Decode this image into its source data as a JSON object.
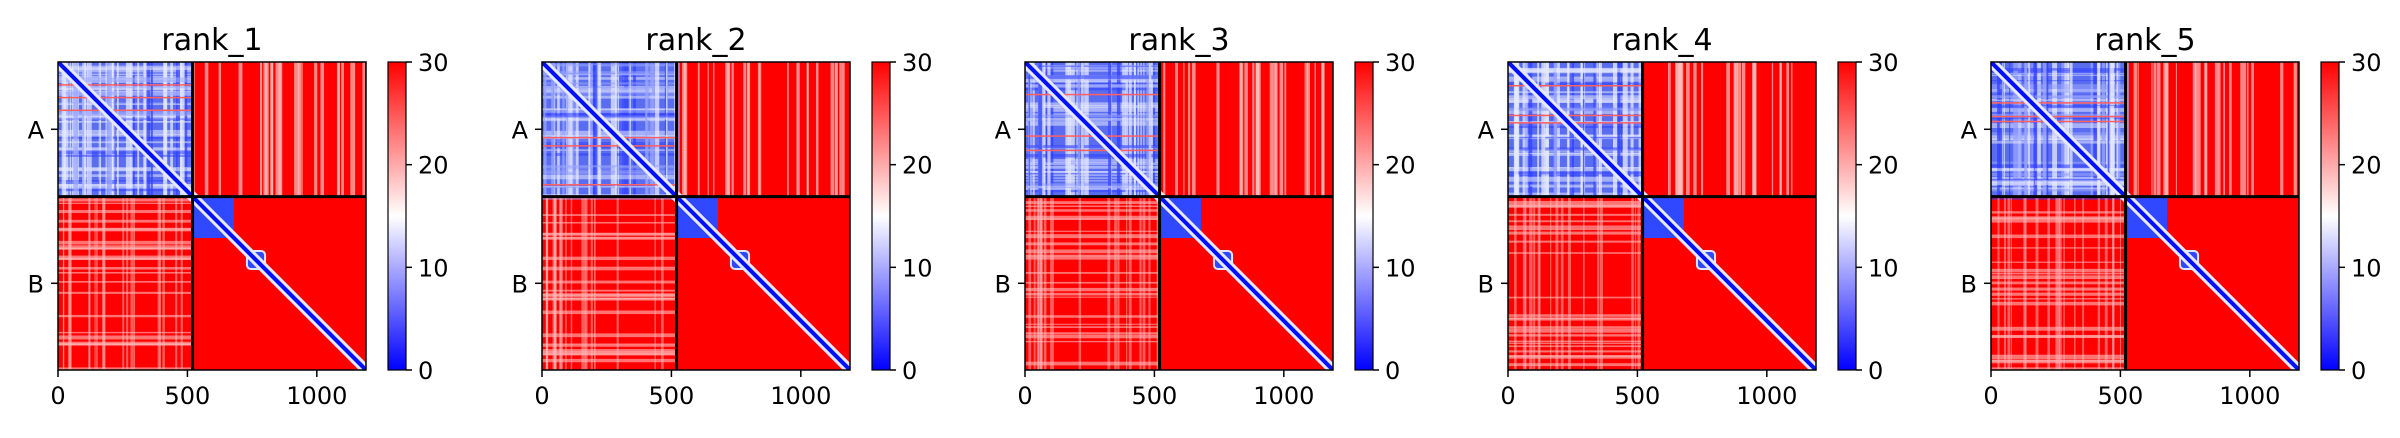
{
  "chart_data": [
    {
      "type": "heatmap",
      "title": "rank_1",
      "x_ticks": [
        0,
        500,
        1000
      ],
      "xlim": [
        0,
        1190
      ],
      "chain_labels": [
        "A",
        "B"
      ],
      "chain_boundary": 520,
      "colorbar": {
        "min": 0,
        "max": 30,
        "ticks": [
          0,
          10,
          20,
          30
        ]
      },
      "colormap": [
        "#0000ff",
        "#ffffff",
        "#ff0000"
      ]
    },
    {
      "type": "heatmap",
      "title": "rank_2",
      "x_ticks": [
        0,
        500,
        1000
      ],
      "xlim": [
        0,
        1190
      ],
      "chain_labels": [
        "A",
        "B"
      ],
      "chain_boundary": 520,
      "colorbar": {
        "min": 0,
        "max": 30,
        "ticks": [
          0,
          10,
          20,
          30
        ]
      },
      "colormap": [
        "#0000ff",
        "#ffffff",
        "#ff0000"
      ]
    },
    {
      "type": "heatmap",
      "title": "rank_3",
      "x_ticks": [
        0,
        500,
        1000
      ],
      "xlim": [
        0,
        1190
      ],
      "chain_labels": [
        "A",
        "B"
      ],
      "chain_boundary": 520,
      "colorbar": {
        "min": 0,
        "max": 30,
        "ticks": [
          0,
          10,
          20,
          30
        ]
      },
      "colormap": [
        "#0000ff",
        "#ffffff",
        "#ff0000"
      ]
    },
    {
      "type": "heatmap",
      "title": "rank_4",
      "x_ticks": [
        0,
        500,
        1000
      ],
      "xlim": [
        0,
        1190
      ],
      "chain_labels": [
        "A",
        "B"
      ],
      "chain_boundary": 520,
      "colorbar": {
        "min": 0,
        "max": 30,
        "ticks": [
          0,
          10,
          20,
          30
        ]
      },
      "colormap": [
        "#0000ff",
        "#ffffff",
        "#ff0000"
      ]
    },
    {
      "type": "heatmap",
      "title": "rank_5",
      "x_ticks": [
        0,
        500,
        1000
      ],
      "xlim": [
        0,
        1190
      ],
      "chain_labels": [
        "A",
        "B"
      ],
      "chain_boundary": 520,
      "colorbar": {
        "min": 0,
        "max": 30,
        "ticks": [
          0,
          10,
          20,
          30
        ]
      },
      "colormap": [
        "#0000ff",
        "#ffffff",
        "#ff0000"
      ]
    }
  ]
}
